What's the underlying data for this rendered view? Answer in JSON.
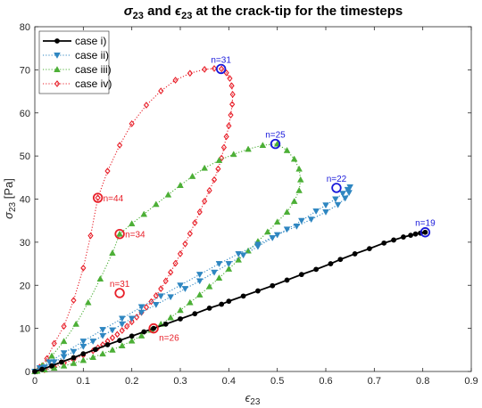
{
  "chart_data": {
    "type": "line",
    "title": "σ23 and ϵ23 at the crack-tip for the timesteps",
    "title_parts": {
      "sigma": "σ",
      "sub": "23",
      "and": " and ",
      "eps": "ϵ",
      "rest": " at the crack-tip for the timesteps"
    },
    "xlabel": "ϵ23",
    "xlabel_parts": {
      "sym": "ϵ",
      "sub": "23"
    },
    "ylabel": "σ23 [Pa]",
    "ylabel_parts": {
      "sym": "σ",
      "sub": "23",
      "unit": " [Pa]"
    },
    "xlim": [
      0,
      0.9
    ],
    "ylim": [
      0,
      80
    ],
    "xticks": [
      "0",
      "0.1",
      "0.2",
      "0.3",
      "0.4",
      "0.5",
      "0.6",
      "0.7",
      "0.8",
      "0.9"
    ],
    "yticks": [
      "0",
      "10",
      "20",
      "30",
      "40",
      "50",
      "60",
      "70",
      "80"
    ],
    "grid": false,
    "legend_position": "top-left",
    "series": [
      {
        "name": "case i)",
        "color": "#000000",
        "marker": "circle",
        "line_style": "solid",
        "x": [
          0,
          0.015,
          0.035,
          0.055,
          0.08,
          0.1,
          0.125,
          0.15,
          0.175,
          0.2,
          0.225,
          0.245,
          0.27,
          0.3,
          0.33,
          0.36,
          0.385,
          0.4,
          0.43,
          0.46,
          0.49,
          0.52,
          0.55,
          0.58,
          0.61,
          0.63,
          0.66,
          0.69,
          0.72,
          0.74,
          0.76,
          0.775,
          0.785,
          0.795,
          0.805
        ],
        "y": [
          0,
          0.5,
          1.3,
          2.2,
          3.2,
          4.1,
          5.1,
          6.2,
          7.2,
          8.2,
          9.2,
          10,
          11,
          12.2,
          13.4,
          14.7,
          15.6,
          16.3,
          17.5,
          18.7,
          19.9,
          21.2,
          22.5,
          23.7,
          25,
          26,
          27.3,
          28.5,
          29.8,
          30.5,
          31.2,
          31.6,
          31.9,
          32.1,
          32.3
        ]
      },
      {
        "name": "case ii)",
        "color": "#2e86c1",
        "marker": "triangle-down",
        "line_style": "dotted",
        "x": [
          0,
          0.02,
          0.04,
          0.06,
          0.08,
          0.1,
          0.12,
          0.14,
          0.16,
          0.18,
          0.2,
          0.22,
          0.25,
          0.28,
          0.31,
          0.34,
          0.37,
          0.4,
          0.43,
          0.46,
          0.49,
          0.52,
          0.55,
          0.58,
          0.6,
          0.62,
          0.635,
          0.645,
          0.65,
          0.648,
          0.64,
          0.625,
          0.6,
          0.57,
          0.54,
          0.5,
          0.46,
          0.42,
          0.38,
          0.34,
          0.3,
          0.26,
          0.22,
          0.18,
          0.14,
          0.1,
          0.06,
          0.03,
          0.01
        ],
        "y": [
          0,
          1,
          2.2,
          3.4,
          4.6,
          5.8,
          7,
          8.3,
          9.6,
          11,
          12.3,
          13.7,
          15.5,
          17.3,
          19.2,
          21,
          23,
          25,
          27,
          29,
          31,
          33,
          35,
          37.2,
          38.6,
          40,
          41.3,
          42.2,
          42.8,
          41.5,
          40.2,
          38.7,
          37,
          35.3,
          33.7,
          31.7,
          29.5,
          27.3,
          25,
          22.5,
          20,
          17.5,
          15,
          12.3,
          9.7,
          7,
          4.3,
          2.2,
          0.8
        ]
      },
      {
        "name": "case iii)",
        "color": "#4caf36",
        "marker": "triangle-up",
        "line_style": "dotted",
        "x": [
          0,
          0.015,
          0.035,
          0.06,
          0.085,
          0.11,
          0.135,
          0.16,
          0.175,
          0.2,
          0.225,
          0.25,
          0.275,
          0.3,
          0.325,
          0.35,
          0.38,
          0.41,
          0.44,
          0.47,
          0.5,
          0.52,
          0.535,
          0.545,
          0.548,
          0.545,
          0.535,
          0.52,
          0.5,
          0.48,
          0.46,
          0.44,
          0.42,
          0.4,
          0.38,
          0.36,
          0.34,
          0.32,
          0.3,
          0.28,
          0.26,
          0.24,
          0.22,
          0.2,
          0.18,
          0.16,
          0.14,
          0.12,
          0.1,
          0.08,
          0.06,
          0.04,
          0.02,
          0.005
        ],
        "y": [
          0,
          1.4,
          3.6,
          7,
          11,
          16,
          21.5,
          27.5,
          31.9,
          34.3,
          36.5,
          38.8,
          41,
          43.2,
          45.3,
          47.2,
          49,
          50.4,
          51.6,
          52.5,
          52.8,
          51.3,
          49.3,
          47,
          44.5,
          42,
          39.5,
          37,
          34.7,
          32.4,
          30.2,
          28,
          25.9,
          23.8,
          21.7,
          19.7,
          17.8,
          16,
          14.2,
          12.5,
          11,
          9.6,
          8.3,
          7.1,
          6,
          5,
          4.1,
          3.3,
          2.6,
          1.9,
          1.3,
          0.8,
          0.4,
          0.1
        ]
      },
      {
        "name": "case iv)",
        "color": "#e8202a",
        "marker": "diamond",
        "line_style": "dotted",
        "x": [
          0,
          0.01,
          0.025,
          0.04,
          0.06,
          0.08,
          0.1,
          0.115,
          0.13,
          0.15,
          0.175,
          0.2,
          0.23,
          0.26,
          0.29,
          0.32,
          0.35,
          0.37,
          0.385,
          0.395,
          0.402,
          0.406,
          0.408,
          0.407,
          0.404,
          0.4,
          0.395,
          0.39,
          0.385,
          0.378,
          0.37,
          0.36,
          0.35,
          0.34,
          0.33,
          0.32,
          0.31,
          0.3,
          0.29,
          0.28,
          0.27,
          0.26,
          0.25,
          0.24,
          0.23,
          0.22,
          0.21,
          0.2,
          0.19,
          0.18,
          0.17,
          0.16,
          0.15,
          0.14,
          0.13,
          0.12,
          0.1,
          0.08,
          0.06,
          0.04,
          0.02,
          0.005
        ],
        "y": [
          0,
          1,
          3,
          6.5,
          10.5,
          16.5,
          24,
          31.5,
          40.3,
          46.5,
          52.5,
          57.5,
          61.8,
          65.1,
          67.6,
          69.2,
          70.1,
          70.3,
          70.2,
          69.3,
          68,
          66.3,
          64.3,
          62,
          59.5,
          57,
          54.5,
          52,
          49.5,
          47,
          44.5,
          42,
          39.5,
          37,
          34.5,
          32,
          29.6,
          27.3,
          25.1,
          23,
          21,
          19.2,
          17.6,
          16.2,
          14.9,
          13.7,
          12.6,
          11.5,
          10.5,
          9.5,
          8.6,
          7.8,
          7,
          6.2,
          5.5,
          4.8,
          3.8,
          2.8,
          1.9,
          1.1,
          0.4,
          0.1
        ]
      }
    ],
    "annotations": [
      {
        "label": "n=19",
        "x": 0.805,
        "y": 32.3,
        "ring_color": "#1a1adb",
        "text_color": "#1a1adb",
        "anchor": "above"
      },
      {
        "label": "n=22",
        "x": 0.622,
        "y": 42.6,
        "ring_color": "#1a1adb",
        "text_color": "#1a1adb",
        "anchor": "above"
      },
      {
        "label": "n=25",
        "x": 0.496,
        "y": 52.8,
        "ring_color": "#1a1adb",
        "text_color": "#1a1adb",
        "anchor": "above"
      },
      {
        "label": "n=31",
        "x": 0.384,
        "y": 70.2,
        "ring_color": "#1a1adb",
        "text_color": "#1a1adb",
        "anchor": "above"
      },
      {
        "label": "n=26",
        "x": 0.245,
        "y": 10,
        "ring_color": "#e8202a",
        "text_color": "#e8202a",
        "anchor": "below"
      },
      {
        "label": "n=31",
        "x": 0.175,
        "y": 18.2,
        "ring_color": "#e8202a",
        "text_color": "#e8202a",
        "anchor": "above"
      },
      {
        "label": "n=34",
        "x": 0.175,
        "y": 31.9,
        "ring_color": "#e8202a",
        "text_color": "#e8202a",
        "anchor": "right"
      },
      {
        "label": "n=44",
        "x": 0.13,
        "y": 40.3,
        "ring_color": "#e8202a",
        "text_color": "#e8202a",
        "anchor": "right"
      }
    ]
  }
}
